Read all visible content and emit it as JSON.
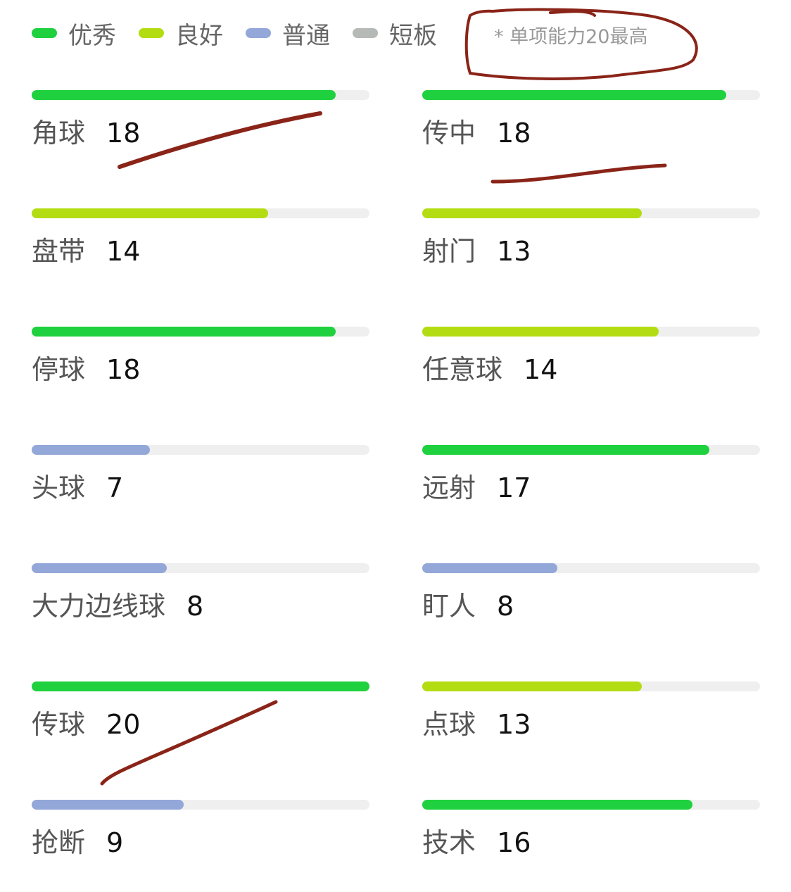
{
  "legend": [
    {
      "label": "优秀",
      "color": "#1fd13e"
    },
    {
      "label": "良好",
      "color": "#b4dc12"
    },
    {
      "label": "普通",
      "color": "#94a7d9"
    },
    {
      "label": "短板",
      "color": "#b6bab7"
    }
  ],
  "note": "* 单项能力20最高",
  "max": 20,
  "left": [
    {
      "name": "角球",
      "value": 18,
      "level": 0
    },
    {
      "name": "盘带",
      "value": 14,
      "level": 1
    },
    {
      "name": "停球",
      "value": 18,
      "level": 0
    },
    {
      "name": "头球",
      "value": 7,
      "level": 2
    },
    {
      "name": "大力边线球",
      "value": 8,
      "level": 2
    },
    {
      "name": "传球",
      "value": 20,
      "level": 0
    },
    {
      "name": "抢断",
      "value": 9,
      "level": 2
    }
  ],
  "right": [
    {
      "name": "传中",
      "value": 18,
      "level": 0
    },
    {
      "name": "射门",
      "value": 13,
      "level": 1
    },
    {
      "name": "任意球",
      "value": 14,
      "level": 1
    },
    {
      "name": "远射",
      "value": 17,
      "level": 0
    },
    {
      "name": "盯人",
      "value": 8,
      "level": 2
    },
    {
      "name": "点球",
      "value": 13,
      "level": 1
    },
    {
      "name": "技术",
      "value": 16,
      "level": 0
    }
  ],
  "annotation_color": "#8a2418"
}
